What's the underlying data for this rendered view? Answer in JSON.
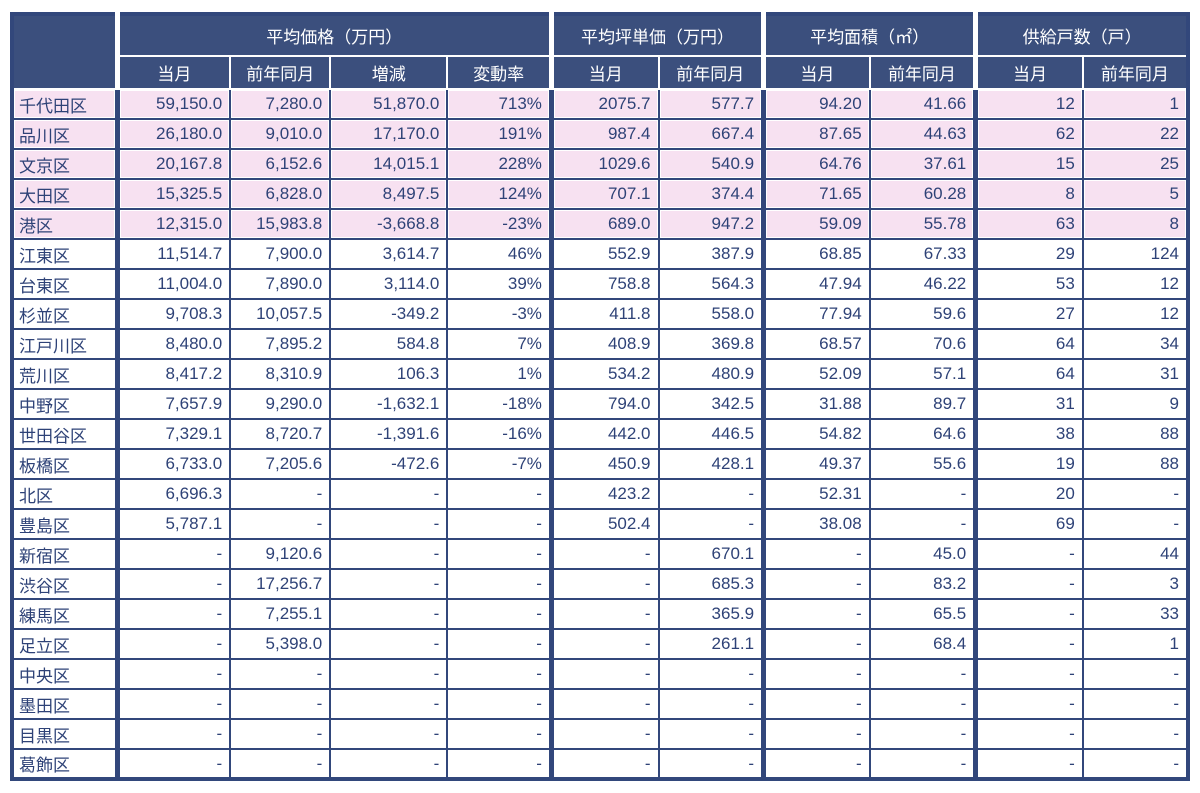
{
  "colors": {
    "navy-header": "#3b4f7d",
    "navy-border": "#32477b",
    "navy-text": "#2e4277",
    "pink": "#f7e1f1",
    "white": "#ffffff"
  },
  "chart_data": {
    "type": "table",
    "title": "",
    "corner_label": "",
    "column_groups": [
      {
        "label": "平均価格（万円）",
        "columns": [
          "当月",
          "前年同月",
          "増減",
          "変動率"
        ]
      },
      {
        "label": "平均坪単価（万円）",
        "columns": [
          "当月",
          "前年同月"
        ]
      },
      {
        "label": "平均面積（㎡）",
        "columns": [
          "当月",
          "前年同月"
        ]
      },
      {
        "label": "供給戸数（戸）",
        "columns": [
          "当月",
          "前年同月"
        ]
      }
    ],
    "layout_hints": {
      "highlight_style": "first five rows shaded pink",
      "grid": "navy gridlines, thick separators between column groups",
      "missing_value_marker": "-"
    },
    "rows": [
      {
        "ward": "千代田区",
        "highlight": true,
        "values": [
          "59,150.0",
          "7,280.0",
          "51,870.0",
          "713%",
          "2075.7",
          "577.7",
          "94.20",
          "41.66",
          "12",
          "1"
        ]
      },
      {
        "ward": "品川区",
        "highlight": true,
        "values": [
          "26,180.0",
          "9,010.0",
          "17,170.0",
          "191%",
          "987.4",
          "667.4",
          "87.65",
          "44.63",
          "62",
          "22"
        ]
      },
      {
        "ward": "文京区",
        "highlight": true,
        "values": [
          "20,167.8",
          "6,152.6",
          "14,015.1",
          "228%",
          "1029.6",
          "540.9",
          "64.76",
          "37.61",
          "15",
          "25"
        ]
      },
      {
        "ward": "大田区",
        "highlight": true,
        "values": [
          "15,325.5",
          "6,828.0",
          "8,497.5",
          "124%",
          "707.1",
          "374.4",
          "71.65",
          "60.28",
          "8",
          "5"
        ]
      },
      {
        "ward": "港区",
        "highlight": true,
        "values": [
          "12,315.0",
          "15,983.8",
          "-3,668.8",
          "-23%",
          "689.0",
          "947.2",
          "59.09",
          "55.78",
          "63",
          "8"
        ]
      },
      {
        "ward": "江東区",
        "highlight": false,
        "values": [
          "11,514.7",
          "7,900.0",
          "3,614.7",
          "46%",
          "552.9",
          "387.9",
          "68.85",
          "67.33",
          "29",
          "124"
        ]
      },
      {
        "ward": "台東区",
        "highlight": false,
        "values": [
          "11,004.0",
          "7,890.0",
          "3,114.0",
          "39%",
          "758.8",
          "564.3",
          "47.94",
          "46.22",
          "53",
          "12"
        ]
      },
      {
        "ward": "杉並区",
        "highlight": false,
        "values": [
          "9,708.3",
          "10,057.5",
          "-349.2",
          "-3%",
          "411.8",
          "558.0",
          "77.94",
          "59.6",
          "27",
          "12"
        ]
      },
      {
        "ward": "江戸川区",
        "highlight": false,
        "values": [
          "8,480.0",
          "7,895.2",
          "584.8",
          "7%",
          "408.9",
          "369.8",
          "68.57",
          "70.6",
          "64",
          "34"
        ]
      },
      {
        "ward": "荒川区",
        "highlight": false,
        "values": [
          "8,417.2",
          "8,310.9",
          "106.3",
          "1%",
          "534.2",
          "480.9",
          "52.09",
          "57.1",
          "64",
          "31"
        ]
      },
      {
        "ward": "中野区",
        "highlight": false,
        "values": [
          "7,657.9",
          "9,290.0",
          "-1,632.1",
          "-18%",
          "794.0",
          "342.5",
          "31.88",
          "89.7",
          "31",
          "9"
        ]
      },
      {
        "ward": "世田谷区",
        "highlight": false,
        "values": [
          "7,329.1",
          "8,720.7",
          "-1,391.6",
          "-16%",
          "442.0",
          "446.5",
          "54.82",
          "64.6",
          "38",
          "88"
        ]
      },
      {
        "ward": "板橋区",
        "highlight": false,
        "values": [
          "6,733.0",
          "7,205.6",
          "-472.6",
          "-7%",
          "450.9",
          "428.1",
          "49.37",
          "55.6",
          "19",
          "88"
        ]
      },
      {
        "ward": "北区",
        "highlight": false,
        "values": [
          "6,696.3",
          "-",
          "-",
          "-",
          "423.2",
          "-",
          "52.31",
          "-",
          "20",
          "-"
        ]
      },
      {
        "ward": "豊島区",
        "highlight": false,
        "values": [
          "5,787.1",
          "-",
          "-",
          "-",
          "502.4",
          "-",
          "38.08",
          "-",
          "69",
          "-"
        ]
      },
      {
        "ward": "新宿区",
        "highlight": false,
        "values": [
          "-",
          "9,120.6",
          "-",
          "-",
          "-",
          "670.1",
          "-",
          "45.0",
          "-",
          "44"
        ]
      },
      {
        "ward": "渋谷区",
        "highlight": false,
        "values": [
          "-",
          "17,256.7",
          "-",
          "-",
          "-",
          "685.3",
          "-",
          "83.2",
          "-",
          "3"
        ]
      },
      {
        "ward": "練馬区",
        "highlight": false,
        "values": [
          "-",
          "7,255.1",
          "-",
          "-",
          "-",
          "365.9",
          "-",
          "65.5",
          "-",
          "33"
        ]
      },
      {
        "ward": "足立区",
        "highlight": false,
        "values": [
          "-",
          "5,398.0",
          "-",
          "-",
          "-",
          "261.1",
          "-",
          "68.4",
          "-",
          "1"
        ]
      },
      {
        "ward": "中央区",
        "highlight": false,
        "values": [
          "-",
          "-",
          "-",
          "-",
          "-",
          "-",
          "-",
          "-",
          "-",
          "-"
        ]
      },
      {
        "ward": "墨田区",
        "highlight": false,
        "values": [
          "-",
          "-",
          "-",
          "-",
          "-",
          "-",
          "-",
          "-",
          "-",
          "-"
        ]
      },
      {
        "ward": "目黒区",
        "highlight": false,
        "values": [
          "-",
          "-",
          "-",
          "-",
          "-",
          "-",
          "-",
          "-",
          "-",
          "-"
        ]
      },
      {
        "ward": "葛飾区",
        "highlight": false,
        "values": [
          "-",
          "-",
          "-",
          "-",
          "-",
          "-",
          "-",
          "-",
          "-",
          "-"
        ]
      }
    ]
  }
}
